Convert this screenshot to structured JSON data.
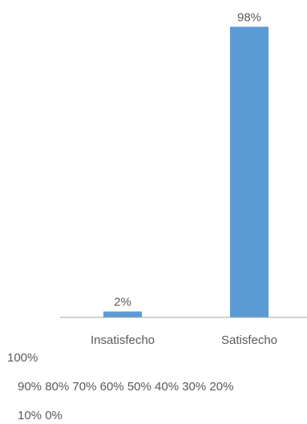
{
  "chart_data": {
    "type": "bar",
    "title": "",
    "xlabel": "",
    "ylabel": "",
    "categories": [
      "Insatisfecho",
      "Satisfecho"
    ],
    "values": [
      2,
      98
    ],
    "data_labels": [
      "2%",
      "98%"
    ],
    "ylim": [
      0,
      100
    ],
    "grid": false,
    "legend": "none",
    "bar_color": "#5b9bd5",
    "axis_color": "#a6a6a6",
    "y_tick_labels": [
      "100%",
      "90%",
      "80%",
      "70%",
      "60%",
      "50%",
      "40%",
      "30%",
      "20%",
      "10%",
      "0%"
    ]
  }
}
